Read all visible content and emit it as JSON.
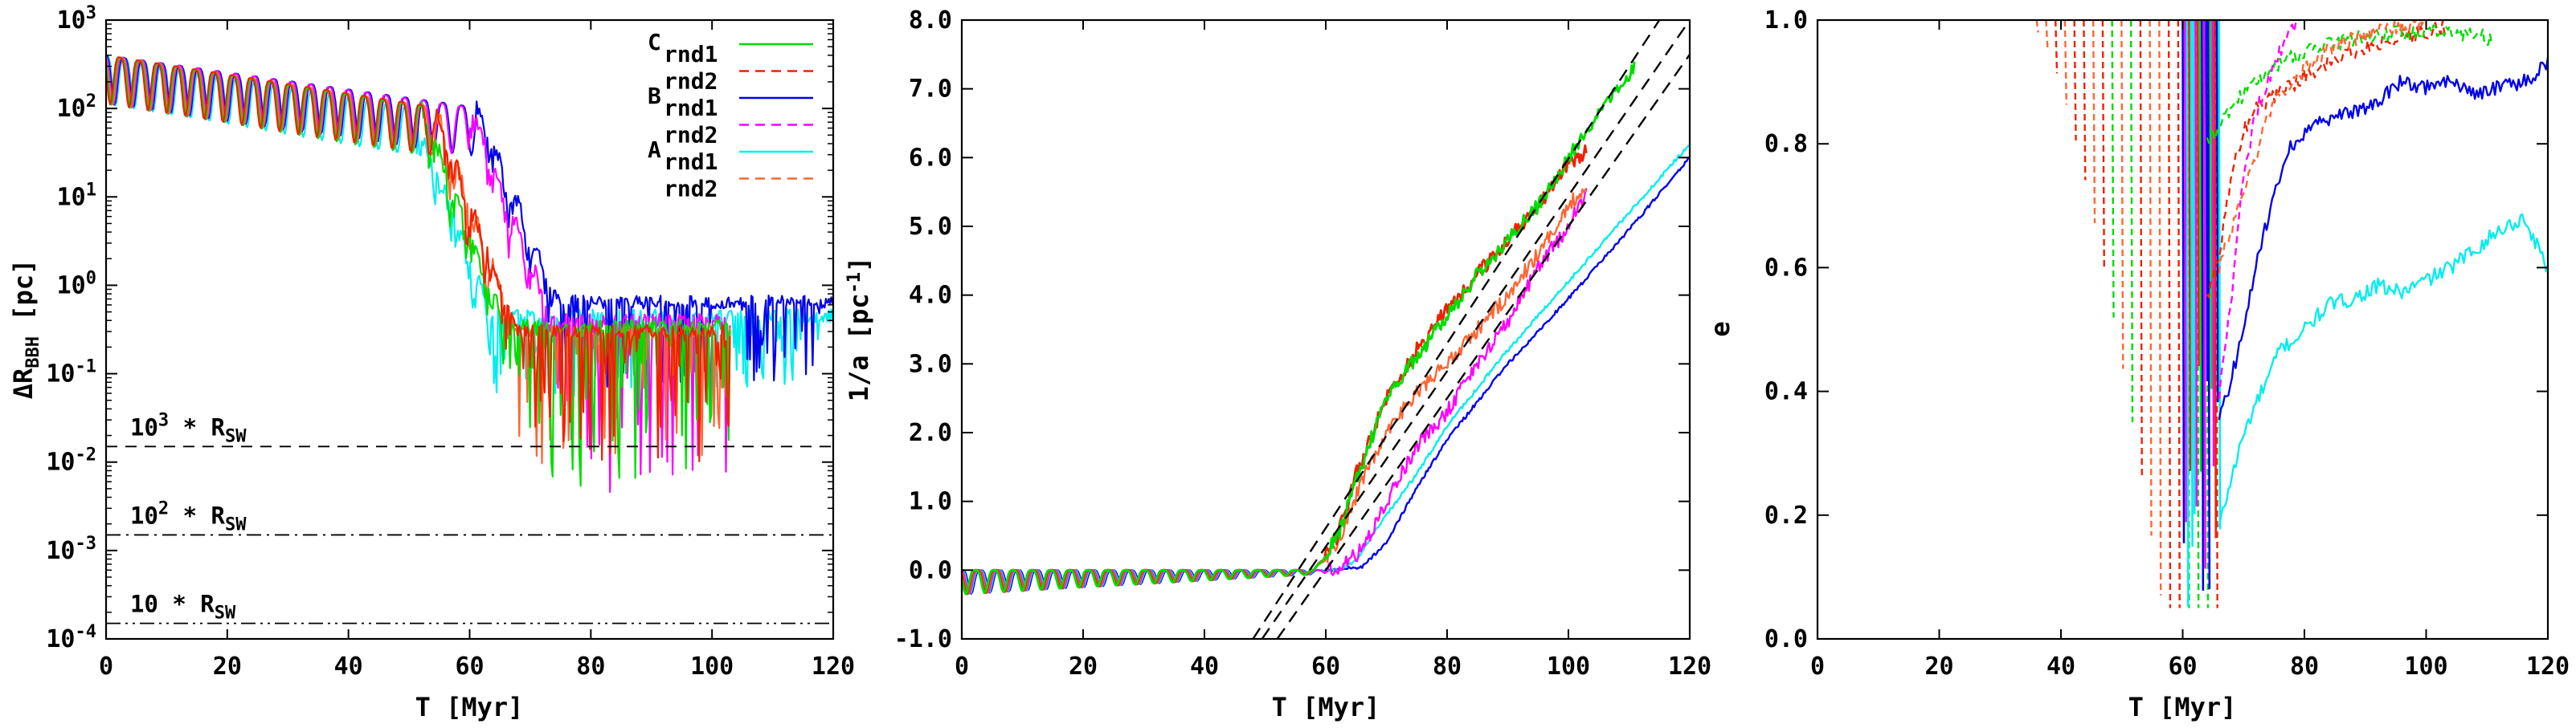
{
  "chart_data": [
    {
      "type": "line",
      "panel": "left",
      "xlabel": "T [Myr]",
      "ylabel": {
        "base": "ΔR",
        "sub": "BBH",
        "tail": " [pc]"
      },
      "xlim": [
        0,
        120
      ],
      "ylim_log10": [
        -4,
        3
      ],
      "yscale": "log",
      "x_ticks": [
        "0",
        "20",
        "40",
        "60",
        "80",
        "100",
        "120"
      ],
      "y_ticks": [
        {
          "base": "10",
          "exp": "-4"
        },
        {
          "base": "10",
          "exp": "-3"
        },
        {
          "base": "10",
          "exp": "-2"
        },
        {
          "base": "10",
          "exp": "-1"
        },
        {
          "base": "10",
          "exp": "0"
        },
        {
          "base": "10",
          "exp": "1"
        },
        {
          "base": "10",
          "exp": "2"
        },
        {
          "base": "10",
          "exp": "3"
        }
      ],
      "legend": {
        "placement": "top-right",
        "entries": [
          {
            "group": "C",
            "label": "rnd1",
            "color": "#00dd00",
            "dash": "solid"
          },
          {
            "group": "",
            "label": "rnd2",
            "color": "#ee2200",
            "dash": "dashed"
          },
          {
            "group": "B",
            "label": "rnd1",
            "color": "#0000ee",
            "dash": "solid"
          },
          {
            "group": "",
            "label": "rnd2",
            "color": "#ff00ff",
            "dash": "dashed"
          },
          {
            "group": "A",
            "label": "rnd1",
            "color": "#00eeee",
            "dash": "solid"
          },
          {
            "group": "",
            "label": "rnd2",
            "color": "#ff6633",
            "dash": "dashed"
          }
        ]
      },
      "reference_lines": [
        {
          "value": 0.015,
          "pre": "10",
          "sup": "3",
          "post": " * R",
          "sub": "SW",
          "style": "dashed"
        },
        {
          "value": 0.0015,
          "pre": "10",
          "sup": "2",
          "post": " * R",
          "sub": "SW",
          "style": "dashdot"
        },
        {
          "value": 0.00015,
          "pre": "10",
          "sup": "",
          "post": " * R",
          "sub": "SW",
          "style": "dashdotdot"
        }
      ],
      "series": [
        {
          "name": "A rnd1",
          "color": "#00eeee",
          "end": 120,
          "decay": 56,
          "floor": 0.45,
          "noise_min": 0.06
        },
        {
          "name": "B rnd1",
          "color": "#0000ee",
          "end": 120,
          "decay": 67,
          "floor": 0.65,
          "noise_min": 0.08
        },
        {
          "name": "B rnd2",
          "color": "#ff00ff",
          "end": 103,
          "decay": 66,
          "floor": 0.4,
          "noise_min": 0.005
        },
        {
          "name": "A rnd2",
          "color": "#ff6633",
          "end": 103,
          "decay": 60,
          "floor": 0.3,
          "noise_min": 0.01
        },
        {
          "name": "C rnd1",
          "color": "#00dd00",
          "end": 103,
          "decay": 58,
          "floor": 0.35,
          "noise_min": 0.005
        },
        {
          "name": "C rnd2",
          "color": "#ee2200",
          "end": 103,
          "decay": 60,
          "floor": 0.3,
          "noise_min": 0.008
        }
      ]
    },
    {
      "type": "line",
      "panel": "middle",
      "xlabel": "T [Myr]",
      "ylabel": {
        "base": "1/a [pc",
        "sup": "-1",
        "tail": "]"
      },
      "xlim": [
        0,
        120
      ],
      "ylim": [
        -1,
        8
      ],
      "x_ticks": [
        "0",
        "20",
        "40",
        "60",
        "80",
        "100",
        "120"
      ],
      "y_ticks": [
        "-1.0",
        "0.0",
        "1.0",
        "2.0",
        "3.0",
        "4.0",
        "5.0",
        "6.0",
        "7.0",
        "8.0"
      ],
      "fit_lines": [
        {
          "x": [
            48,
            115
          ],
          "y": [
            -1,
            8
          ]
        },
        {
          "x": [
            49.5,
            120
          ],
          "y": [
            -1,
            8
          ]
        },
        {
          "x": [
            52,
            120
          ],
          "y": [
            -1,
            7.5
          ]
        }
      ],
      "series": [
        {
          "name": "B rnd1",
          "color": "#0000ee",
          "points": [
            [
              0,
              0
            ],
            [
              62,
              0
            ],
            [
              66,
              0.05
            ],
            [
              70,
              0.4
            ],
            [
              75,
              1.2
            ],
            [
              80,
              1.9
            ],
            [
              90,
              3.0
            ],
            [
              100,
              3.95
            ],
            [
              110,
              4.95
            ],
            [
              120,
              6.0
            ]
          ]
        },
        {
          "name": "A rnd1",
          "color": "#00eeee",
          "points": [
            [
              0,
              0
            ],
            [
              62,
              0
            ],
            [
              65,
              0.15
            ],
            [
              70,
              0.8
            ],
            [
              75,
              1.4
            ],
            [
              80,
              2.1
            ],
            [
              90,
              3.2
            ],
            [
              100,
              4.2
            ],
            [
              110,
              5.2
            ],
            [
              120,
              6.2
            ]
          ]
        },
        {
          "name": "B rnd2",
          "color": "#ff00ff",
          "points": [
            [
              0,
              0
            ],
            [
              62,
              0
            ],
            [
              66,
              0.3
            ],
            [
              70,
              1.0
            ],
            [
              75,
              1.8
            ],
            [
              80,
              2.3
            ],
            [
              85,
              3.0
            ],
            [
              90,
              3.6
            ],
            [
              95,
              4.4
            ],
            [
              100,
              5.0
            ],
            [
              103,
              5.5
            ]
          ]
        },
        {
          "name": "A rnd2",
          "color": "#ff6633",
          "points": [
            [
              0,
              0
            ],
            [
              58,
              0
            ],
            [
              62,
              0.4
            ],
            [
              66,
              1.3
            ],
            [
              70,
              2.0
            ],
            [
              75,
              2.6
            ],
            [
              80,
              3.0
            ],
            [
              85,
              3.5
            ],
            [
              90,
              4.0
            ],
            [
              95,
              4.6
            ],
            [
              100,
              5.3
            ],
            [
              103,
              5.6
            ]
          ]
        },
        {
          "name": "C rnd2",
          "color": "#ee2200",
          "points": [
            [
              0,
              0
            ],
            [
              58,
              0
            ],
            [
              62,
              0.5
            ],
            [
              65,
              1.4
            ],
            [
              70,
              2.5
            ],
            [
              75,
              3.2
            ],
            [
              80,
              3.8
            ],
            [
              85,
              4.3
            ],
            [
              90,
              4.8
            ],
            [
              95,
              5.3
            ],
            [
              100,
              5.9
            ],
            [
              103,
              6.1
            ]
          ]
        },
        {
          "name": "C rnd1",
          "color": "#00dd00",
          "points": [
            [
              0,
              0
            ],
            [
              58,
              0
            ],
            [
              62,
              0.5
            ],
            [
              65,
              1.3
            ],
            [
              70,
              2.5
            ],
            [
              75,
              3.1
            ],
            [
              80,
              3.7
            ],
            [
              85,
              4.3
            ],
            [
              90,
              4.8
            ],
            [
              95,
              5.3
            ],
            [
              100,
              6.0
            ],
            [
              105,
              6.6
            ],
            [
              110,
              7.2
            ],
            [
              111,
              7.3
            ]
          ]
        }
      ]
    },
    {
      "type": "line",
      "panel": "right",
      "xlabel": "T [Myr]",
      "ylabel": {
        "base": "e",
        "sub": "",
        "tail": ""
      },
      "xlim": [
        0,
        120
      ],
      "ylim": [
        0,
        1
      ],
      "x_ticks": [
        "0",
        "20",
        "40",
        "60",
        "80",
        "100",
        "120"
      ],
      "y_ticks": [
        "0.0",
        "0.2",
        "0.4",
        "0.6",
        "0.8",
        "1.0"
      ],
      "series": [
        {
          "name": "A rnd1",
          "color": "#00eeee",
          "points": [
            [
              66,
              0.18
            ],
            [
              68,
              0.26
            ],
            [
              70,
              0.33
            ],
            [
              72,
              0.38
            ],
            [
              74,
              0.42
            ],
            [
              76,
              0.47
            ],
            [
              78,
              0.48
            ],
            [
              80,
              0.5
            ],
            [
              84,
              0.54
            ],
            [
              88,
              0.55
            ],
            [
              92,
              0.57
            ],
            [
              96,
              0.56
            ],
            [
              100,
              0.58
            ],
            [
              104,
              0.6
            ],
            [
              108,
              0.63
            ],
            [
              112,
              0.66
            ],
            [
              116,
              0.68
            ],
            [
              120,
              0.6
            ]
          ]
        },
        {
          "name": "B rnd1",
          "color": "#0000ee",
          "points": [
            [
              66,
              0.35
            ],
            [
              68,
              0.42
            ],
            [
              70,
              0.5
            ],
            [
              72,
              0.6
            ],
            [
              74,
              0.68
            ],
            [
              76,
              0.75
            ],
            [
              78,
              0.8
            ],
            [
              80,
              0.82
            ],
            [
              84,
              0.84
            ],
            [
              88,
              0.85
            ],
            [
              92,
              0.87
            ],
            [
              96,
              0.9
            ],
            [
              100,
              0.89
            ],
            [
              104,
              0.9
            ],
            [
              108,
              0.88
            ],
            [
              112,
              0.89
            ],
            [
              116,
              0.9
            ],
            [
              120,
              0.93
            ]
          ]
        },
        {
          "name": "C rnd2",
          "color": "#ee2200",
          "points": [
            [
              64,
              0.55
            ],
            [
              66,
              0.62
            ],
            [
              68,
              0.75
            ],
            [
              70,
              0.82
            ],
            [
              72,
              0.86
            ],
            [
              76,
              0.88
            ],
            [
              80,
              0.91
            ],
            [
              84,
              0.93
            ],
            [
              88,
              0.95
            ],
            [
              92,
              0.96
            ],
            [
              96,
              0.97
            ],
            [
              100,
              0.98
            ],
            [
              103,
              0.99
            ]
          ]
        },
        {
          "name": "C rnd1",
          "color": "#00dd00",
          "points": [
            [
              64,
              0.8
            ],
            [
              68,
              0.86
            ],
            [
              72,
              0.9
            ],
            [
              76,
              0.93
            ],
            [
              80,
              0.95
            ],
            [
              84,
              0.96
            ],
            [
              88,
              0.97
            ],
            [
              92,
              0.975
            ],
            [
              96,
              0.98
            ],
            [
              100,
              0.98
            ],
            [
              104,
              0.98
            ],
            [
              108,
              0.975
            ],
            [
              111,
              0.97
            ]
          ]
        },
        {
          "name": "B rnd2",
          "color": "#ff00ff",
          "points": [
            [
              66,
              0.4
            ],
            [
              68,
              0.55
            ],
            [
              70,
              0.75
            ],
            [
              72,
              0.85
            ],
            [
              74,
              0.9
            ],
            [
              76,
              0.95
            ],
            [
              78,
              0.99
            ],
            [
              79,
              1.0
            ]
          ]
        },
        {
          "name": "A rnd2",
          "color": "#ff6633",
          "points": [
            [
              66,
              0.6
            ],
            [
              70,
              0.72
            ],
            [
              72,
              0.78
            ],
            [
              74,
              0.85
            ],
            [
              76,
              0.88
            ],
            [
              80,
              0.92
            ],
            [
              84,
              0.95
            ],
            [
              88,
              0.97
            ],
            [
              92,
              0.98
            ],
            [
              96,
              0.99
            ],
            [
              100,
              1.0
            ]
          ]
        }
      ]
    }
  ]
}
